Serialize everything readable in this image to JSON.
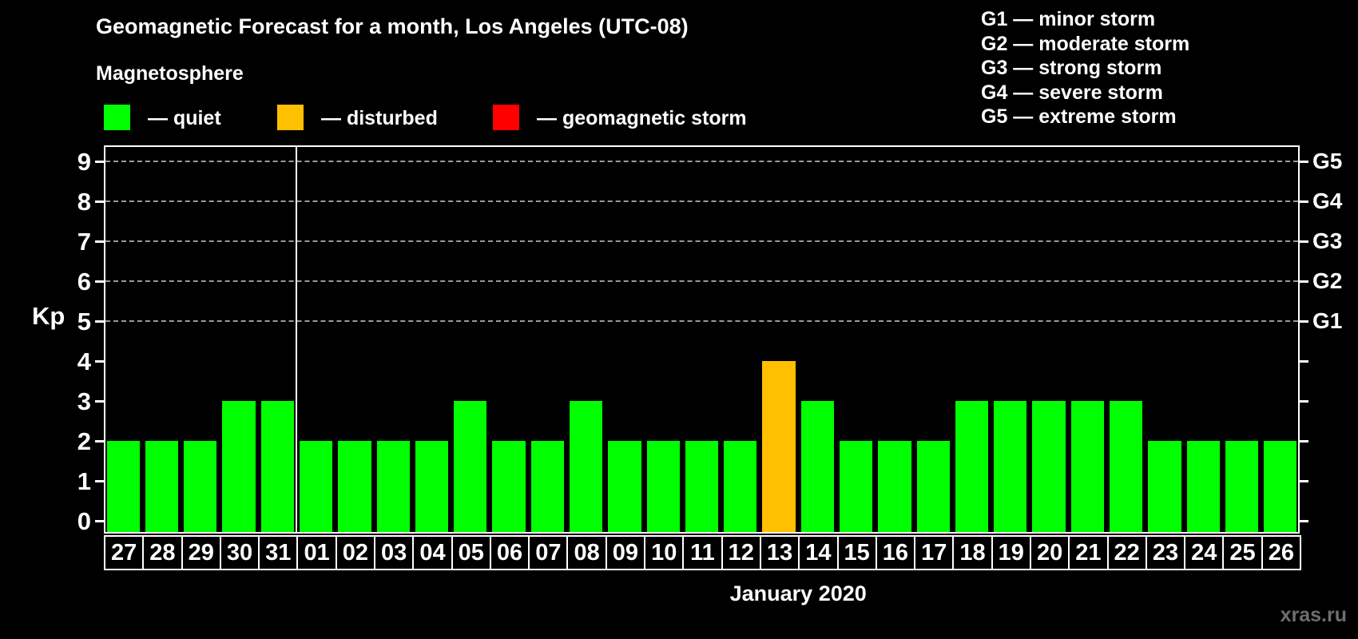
{
  "header": {
    "title": "Geomagnetic Forecast for a month, Los Angeles (UTC-08)",
    "subtitle": "Magnetosphere",
    "dash": "—",
    "legend": [
      {
        "status": "quiet",
        "label": "quiet",
        "color": "#00ff00"
      },
      {
        "status": "disturbed",
        "label": "disturbed",
        "color": "#ffc000"
      },
      {
        "status": "geomagnetic-storm",
        "label": "geomagnetic storm",
        "color": "#ff0000"
      }
    ]
  },
  "storm_scale": [
    {
      "code": "G1",
      "label": "minor storm"
    },
    {
      "code": "G2",
      "label": "moderate storm"
    },
    {
      "code": "G3",
      "label": "strong storm"
    },
    {
      "code": "G4",
      "label": "severe storm"
    },
    {
      "code": "G5",
      "label": "extreme storm"
    }
  ],
  "chart_data": {
    "type": "bar",
    "title": "Geomagnetic Forecast for a month, Los Angeles (UTC-08)",
    "ylabel": "Kp",
    "xlabel": "January 2020",
    "ylim": [
      -0.35,
      9.4
    ],
    "yticks": [
      0,
      1,
      2,
      3,
      4,
      5,
      6,
      7,
      8,
      9
    ],
    "gridlines_at": [
      5,
      6,
      7,
      8,
      9
    ],
    "grid": true,
    "legend_position": "top-left",
    "right_axis_labels": [
      {
        "kp": 5,
        "label": "G1"
      },
      {
        "kp": 6,
        "label": "G2"
      },
      {
        "kp": 7,
        "label": "G3"
      },
      {
        "kp": 8,
        "label": "G4"
      },
      {
        "kp": 9,
        "label": "G5"
      }
    ],
    "categories": [
      "27",
      "28",
      "29",
      "30",
      "31",
      "01",
      "02",
      "03",
      "04",
      "05",
      "06",
      "07",
      "08",
      "09",
      "10",
      "11",
      "12",
      "13",
      "14",
      "15",
      "16",
      "17",
      "18",
      "19",
      "20",
      "21",
      "22",
      "23",
      "24",
      "25",
      "26"
    ],
    "values": [
      2,
      2,
      2,
      3,
      3,
      2,
      2,
      2,
      2,
      3,
      2,
      2,
      3,
      2,
      2,
      2,
      2,
      4,
      3,
      2,
      2,
      2,
      3,
      3,
      3,
      3,
      3,
      2,
      2,
      2,
      2
    ],
    "statuses": [
      "quiet",
      "quiet",
      "quiet",
      "quiet",
      "quiet",
      "quiet",
      "quiet",
      "quiet",
      "quiet",
      "quiet",
      "quiet",
      "quiet",
      "quiet",
      "quiet",
      "quiet",
      "quiet",
      "quiet",
      "disturbed",
      "quiet",
      "quiet",
      "quiet",
      "quiet",
      "quiet",
      "quiet",
      "quiet",
      "quiet",
      "quiet",
      "quiet",
      "quiet",
      "quiet",
      "quiet"
    ],
    "colors_by_status": {
      "quiet": "#00ff00",
      "disturbed": "#ffc000",
      "geomagnetic-storm": "#ff0000"
    },
    "month_separator_after_index": 4,
    "watermark": "xras.ru"
  }
}
